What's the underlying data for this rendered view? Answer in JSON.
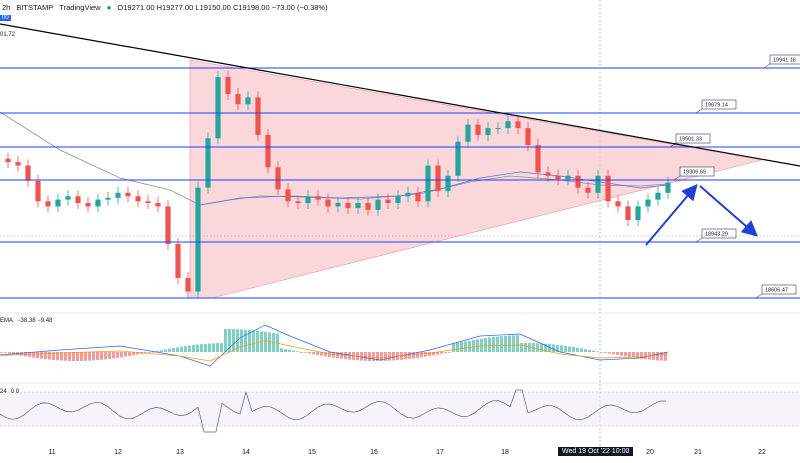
{
  "header": {
    "interval": "2h",
    "exchange": "BITSTAMP",
    "source": "TradingView",
    "ohlc": "O19271.00 H19277.00 L19150.00 C19198.00 −73.00 (−0.38%)"
  },
  "price_axis_fragments": [
    "00",
    "01.72"
  ],
  "indicators": {
    "macd_label": "EMA",
    "macd_values": "−38.38 −9.48",
    "rsi_label": "24",
    "rsi_values": "0 0"
  },
  "cursor_label": "Wed 19 Oct '22  10:00",
  "colors": {
    "up": "#26a69a",
    "down": "#ef5350",
    "level_line": "#1e40ff",
    "trend_line": "#000000",
    "triangle_fill": "#f8c9cf",
    "arrow": "#1f3fd6",
    "ma": "#8a8f9a"
  },
  "chart_data": {
    "type": "candlestick",
    "x_ticks": [
      "11",
      "12",
      "13",
      "14",
      "15",
      "16",
      "17",
      "18",
      "20",
      "21",
      "22"
    ],
    "horizontal_levels": [
      19941.16,
      19679.14,
      19501.33,
      19306.69,
      18943.29,
      18606.47
    ],
    "level_labels": [
      "19941.16",
      "19679.14",
      "19501.33",
      "19306.69",
      "18943.29",
      "18606.47"
    ],
    "ylim": [
      18500,
      20250
    ],
    "pattern": "symmetrical triangle",
    "annotations": [
      "projected move up to 19306.69 then down toward 18943.29"
    ],
    "candles": [
      [
        0,
        19380
      ],
      [
        1,
        19360
      ],
      [
        2,
        19270
      ],
      [
        3,
        19150
      ],
      [
        4,
        19120
      ],
      [
        5,
        19160
      ],
      [
        6,
        19180
      ],
      [
        7,
        19140
      ],
      [
        8,
        19120
      ],
      [
        9,
        19160
      ],
      [
        10,
        19170
      ],
      [
        11,
        19200
      ],
      [
        12,
        19180
      ],
      [
        13,
        19150
      ],
      [
        14,
        19140
      ],
      [
        15,
        19120
      ],
      [
        16,
        18900
      ],
      [
        17,
        18700
      ],
      [
        18,
        18620
      ],
      [
        19,
        19230
      ],
      [
        20,
        19520
      ],
      [
        21,
        19880
      ],
      [
        22,
        19780
      ],
      [
        23,
        19720
      ],
      [
        24,
        19760
      ],
      [
        25,
        19540
      ],
      [
        26,
        19350
      ],
      [
        27,
        19220
      ],
      [
        28,
        19150
      ],
      [
        29,
        19140
      ],
      [
        30,
        19180
      ],
      [
        31,
        19160
      ],
      [
        32,
        19120
      ],
      [
        33,
        19140
      ],
      [
        34,
        19110
      ],
      [
        35,
        19140
      ],
      [
        36,
        19100
      ],
      [
        37,
        19160
      ],
      [
        38,
        19140
      ],
      [
        39,
        19180
      ],
      [
        40,
        19200
      ],
      [
        41,
        19150
      ],
      [
        42,
        19360
      ],
      [
        43,
        19210
      ],
      [
        44,
        19300
      ],
      [
        45,
        19500
      ],
      [
        46,
        19600
      ],
      [
        47,
        19540
      ],
      [
        48,
        19580
      ],
      [
        49,
        19580
      ],
      [
        50,
        19620
      ],
      [
        51,
        19580
      ],
      [
        52,
        19480
      ],
      [
        53,
        19320
      ],
      [
        54,
        19300
      ],
      [
        55,
        19280
      ],
      [
        56,
        19300
      ],
      [
        57,
        19230
      ],
      [
        58,
        19200
      ],
      [
        59,
        19300
      ],
      [
        60,
        19150
      ],
      [
        61,
        19120
      ],
      [
        62,
        19040
      ],
      [
        63,
        19120
      ],
      [
        64,
        19160
      ],
      [
        65,
        19200
      ],
      [
        66,
        19260
      ]
    ],
    "macd": {
      "values": [
        -38.38,
        -9.48
      ]
    }
  }
}
